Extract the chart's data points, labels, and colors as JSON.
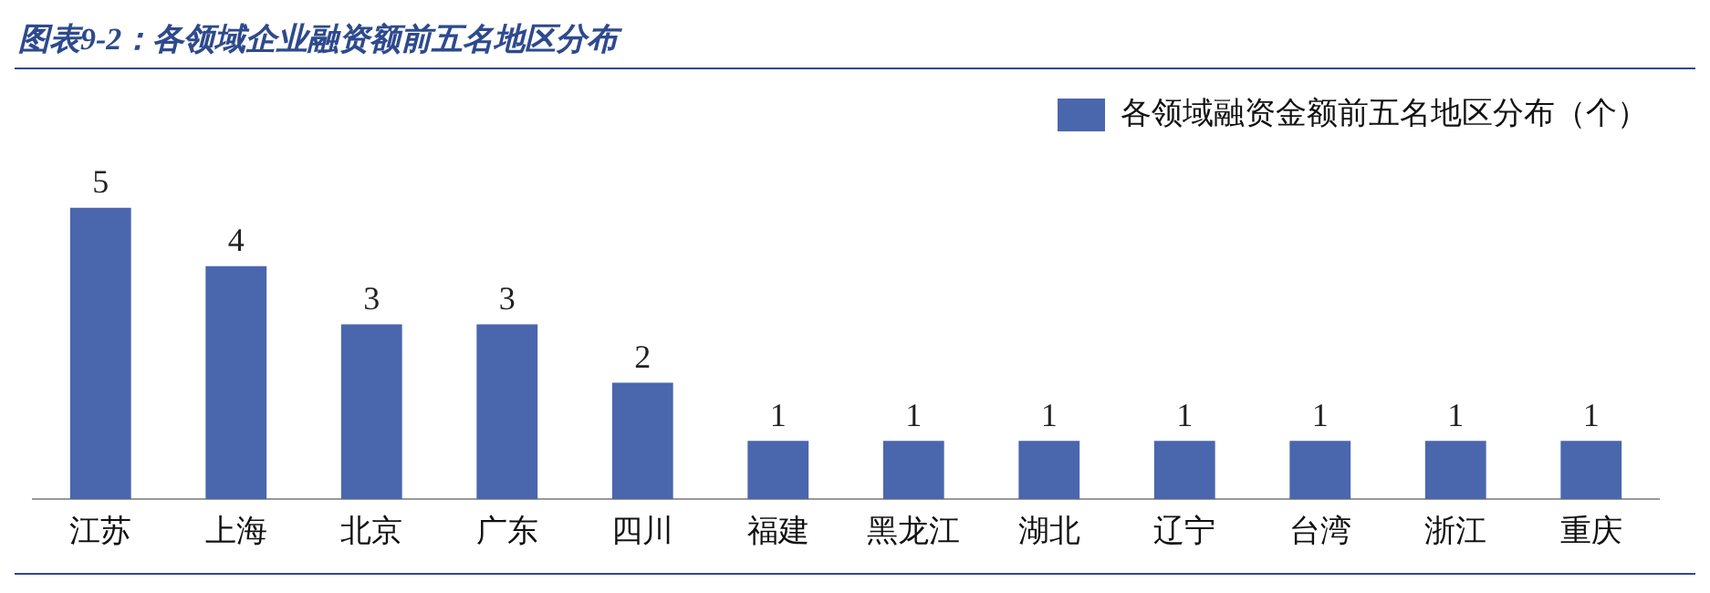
{
  "chart_data": {
    "type": "bar",
    "title": "图表9-2：各领域企业融资额前五名地区分布",
    "categories": [
      "江苏",
      "上海",
      "北京",
      "广东",
      "四川",
      "福建",
      "黑龙江",
      "湖北",
      "辽宁",
      "台湾",
      "浙江",
      "重庆"
    ],
    "series": [
      {
        "name": "各领域融资金额前五名地区分布（个）",
        "color": "#4a66ad",
        "values": [
          5,
          4,
          3,
          3,
          2,
          1,
          1,
          1,
          1,
          1,
          1,
          1
        ]
      }
    ],
    "data_labels": true,
    "legend": "top right",
    "grid": false
  }
}
